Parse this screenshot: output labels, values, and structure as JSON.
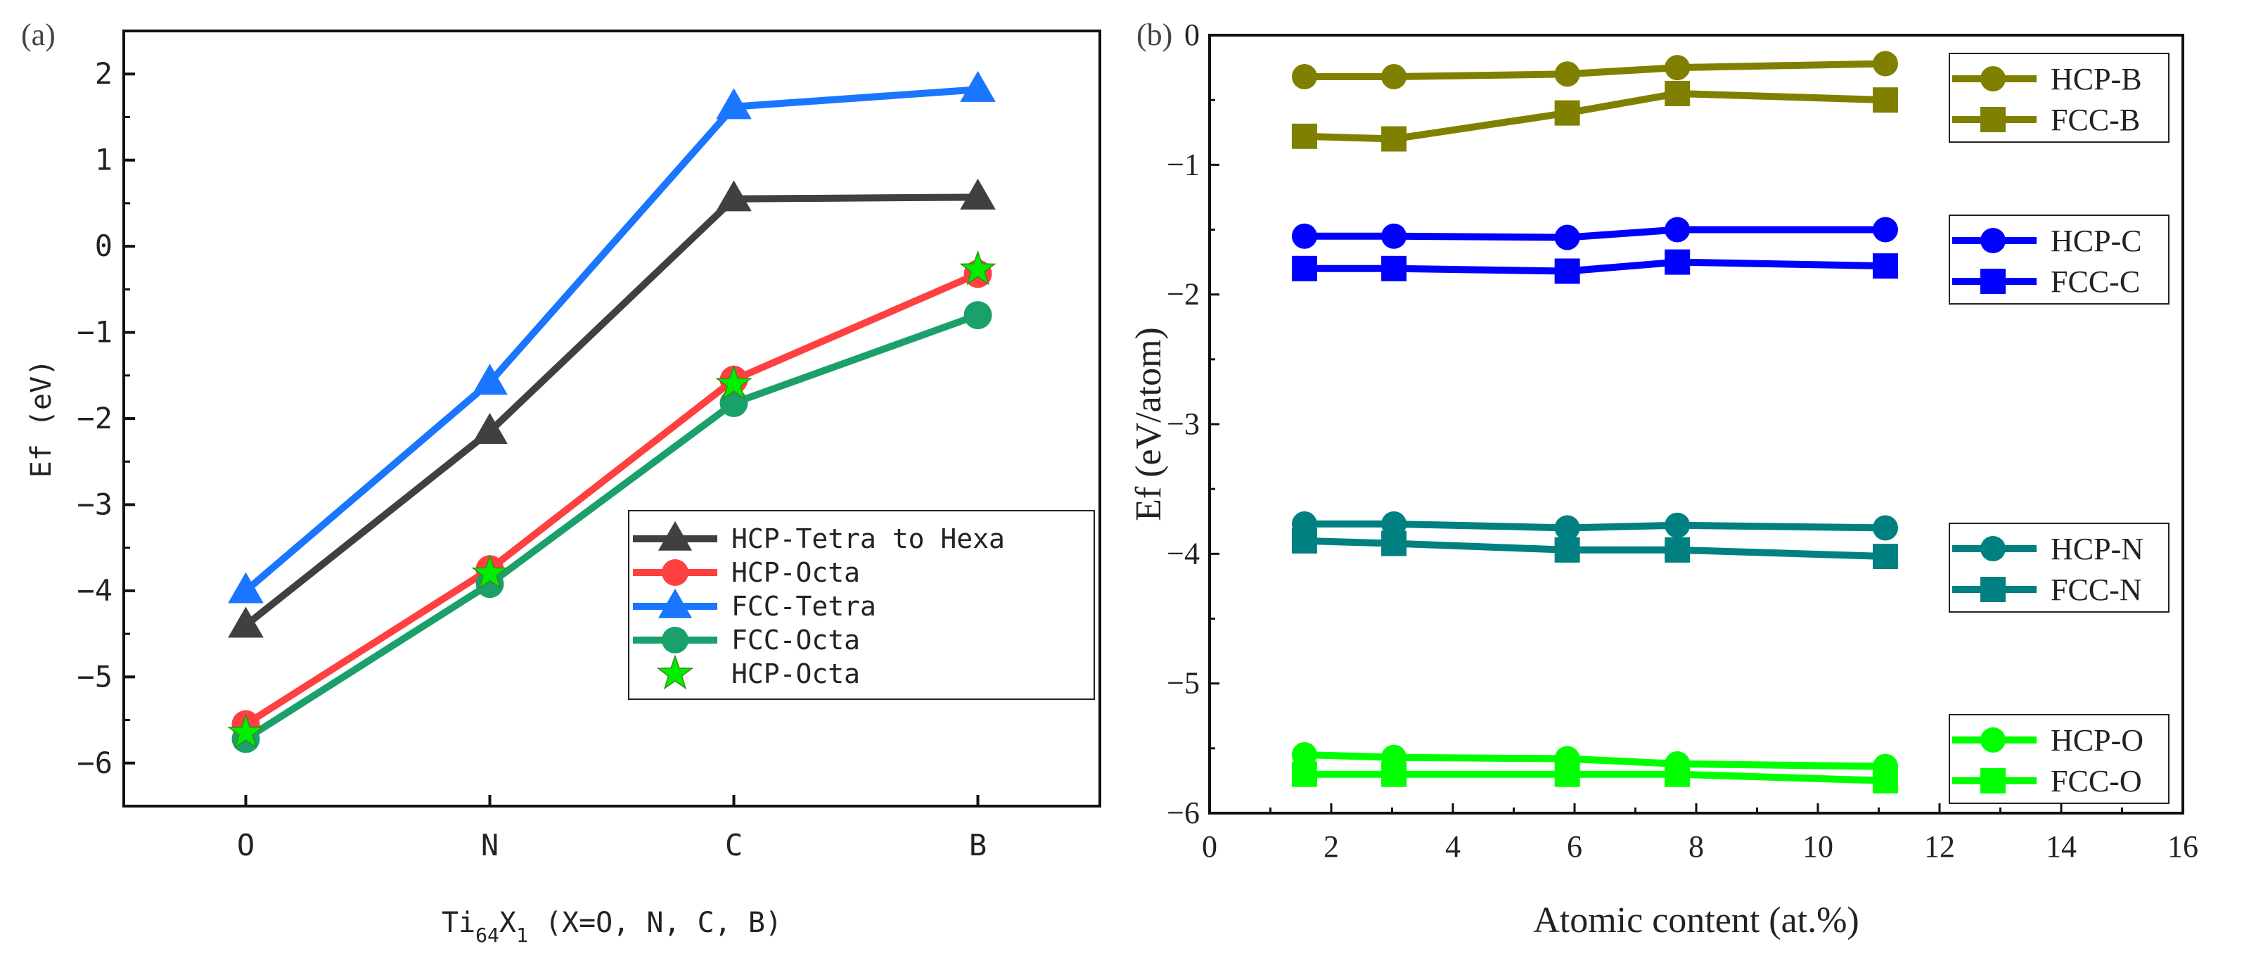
{
  "chart_data": [
    {
      "type": "line",
      "panel_label": "(a)",
      "categories": [
        "O",
        "N",
        "C",
        "B"
      ],
      "xlabel": {
        "main": "Ti",
        "sub1": "64",
        "mid": "X",
        "sub2": "1",
        "rest": " (X=O, N, C, B)"
      },
      "ylabel": "Ef (eV)",
      "ylim": [
        -6.5,
        2.5
      ],
      "yticks": [
        -6,
        -5,
        -4,
        -3,
        -2,
        -1,
        0,
        1,
        2
      ],
      "legend_position": "lower-right",
      "series": [
        {
          "name": "HCP-Tetra to Hexa",
          "color": "#404040",
          "marker": "triangle",
          "line": true,
          "values": [
            -4.4,
            -2.15,
            0.55,
            0.57
          ]
        },
        {
          "name": "HCP-Octa",
          "color": "#ff4040",
          "marker": "circle",
          "line": true,
          "values": [
            -5.55,
            -3.75,
            -1.55,
            -0.32
          ]
        },
        {
          "name": "FCC-Tetra",
          "color": "#1a75ff",
          "marker": "triangle",
          "line": true,
          "values": [
            -4.0,
            -1.58,
            1.62,
            1.82
          ]
        },
        {
          "name": "FCC-Octa",
          "color": "#1aa06a",
          "marker": "circle",
          "line": true,
          "values": [
            -5.72,
            -3.92,
            -1.82,
            -0.8
          ]
        },
        {
          "name": "HCP-Octa",
          "color": "#00ee00",
          "marker": "star",
          "line": false,
          "values": [
            -5.65,
            -3.8,
            -1.6,
            -0.27
          ]
        }
      ]
    },
    {
      "type": "line",
      "panel_label": "(b)",
      "x": [
        1.56,
        3.03,
        5.88,
        7.69,
        11.11
      ],
      "xlabel": "Atomic content (at.%)",
      "ylabel": "Ef (eV/atom)",
      "xlim": [
        0,
        16
      ],
      "ylim": [
        -6,
        0
      ],
      "xticks": [
        0,
        2,
        4,
        6,
        8,
        10,
        12,
        14,
        16
      ],
      "yticks": [
        0,
        -1,
        -2,
        -3,
        -4,
        -5,
        -6
      ],
      "legend_position": "right, grouped by element",
      "series": [
        {
          "name": "HCP-B",
          "color": "#808000",
          "marker": "circle",
          "values": [
            -0.32,
            -0.32,
            -0.3,
            -0.25,
            -0.22
          ]
        },
        {
          "name": "FCC-B",
          "color": "#808000",
          "marker": "square",
          "values": [
            -0.78,
            -0.8,
            -0.6,
            -0.45,
            -0.5
          ]
        },
        {
          "name": "HCP-C",
          "color": "#0000ff",
          "marker": "circle",
          "values": [
            -1.55,
            -1.55,
            -1.56,
            -1.5,
            -1.5
          ]
        },
        {
          "name": "FCC-C",
          "color": "#0000ff",
          "marker": "square",
          "values": [
            -1.8,
            -1.8,
            -1.82,
            -1.75,
            -1.78
          ]
        },
        {
          "name": "HCP-N",
          "color": "#008080",
          "marker": "circle",
          "values": [
            -3.77,
            -3.77,
            -3.8,
            -3.78,
            -3.8
          ]
        },
        {
          "name": "FCC-N",
          "color": "#008080",
          "marker": "square",
          "values": [
            -3.9,
            -3.92,
            -3.97,
            -3.97,
            -4.02
          ]
        },
        {
          "name": "HCP-O",
          "color": "#00ff00",
          "marker": "circle",
          "values": [
            -5.55,
            -5.57,
            -5.58,
            -5.62,
            -5.64
          ]
        },
        {
          "name": "FCC-O",
          "color": "#00ff00",
          "marker": "square",
          "values": [
            -5.7,
            -5.7,
            -5.7,
            -5.7,
            -5.75
          ]
        }
      ]
    }
  ]
}
